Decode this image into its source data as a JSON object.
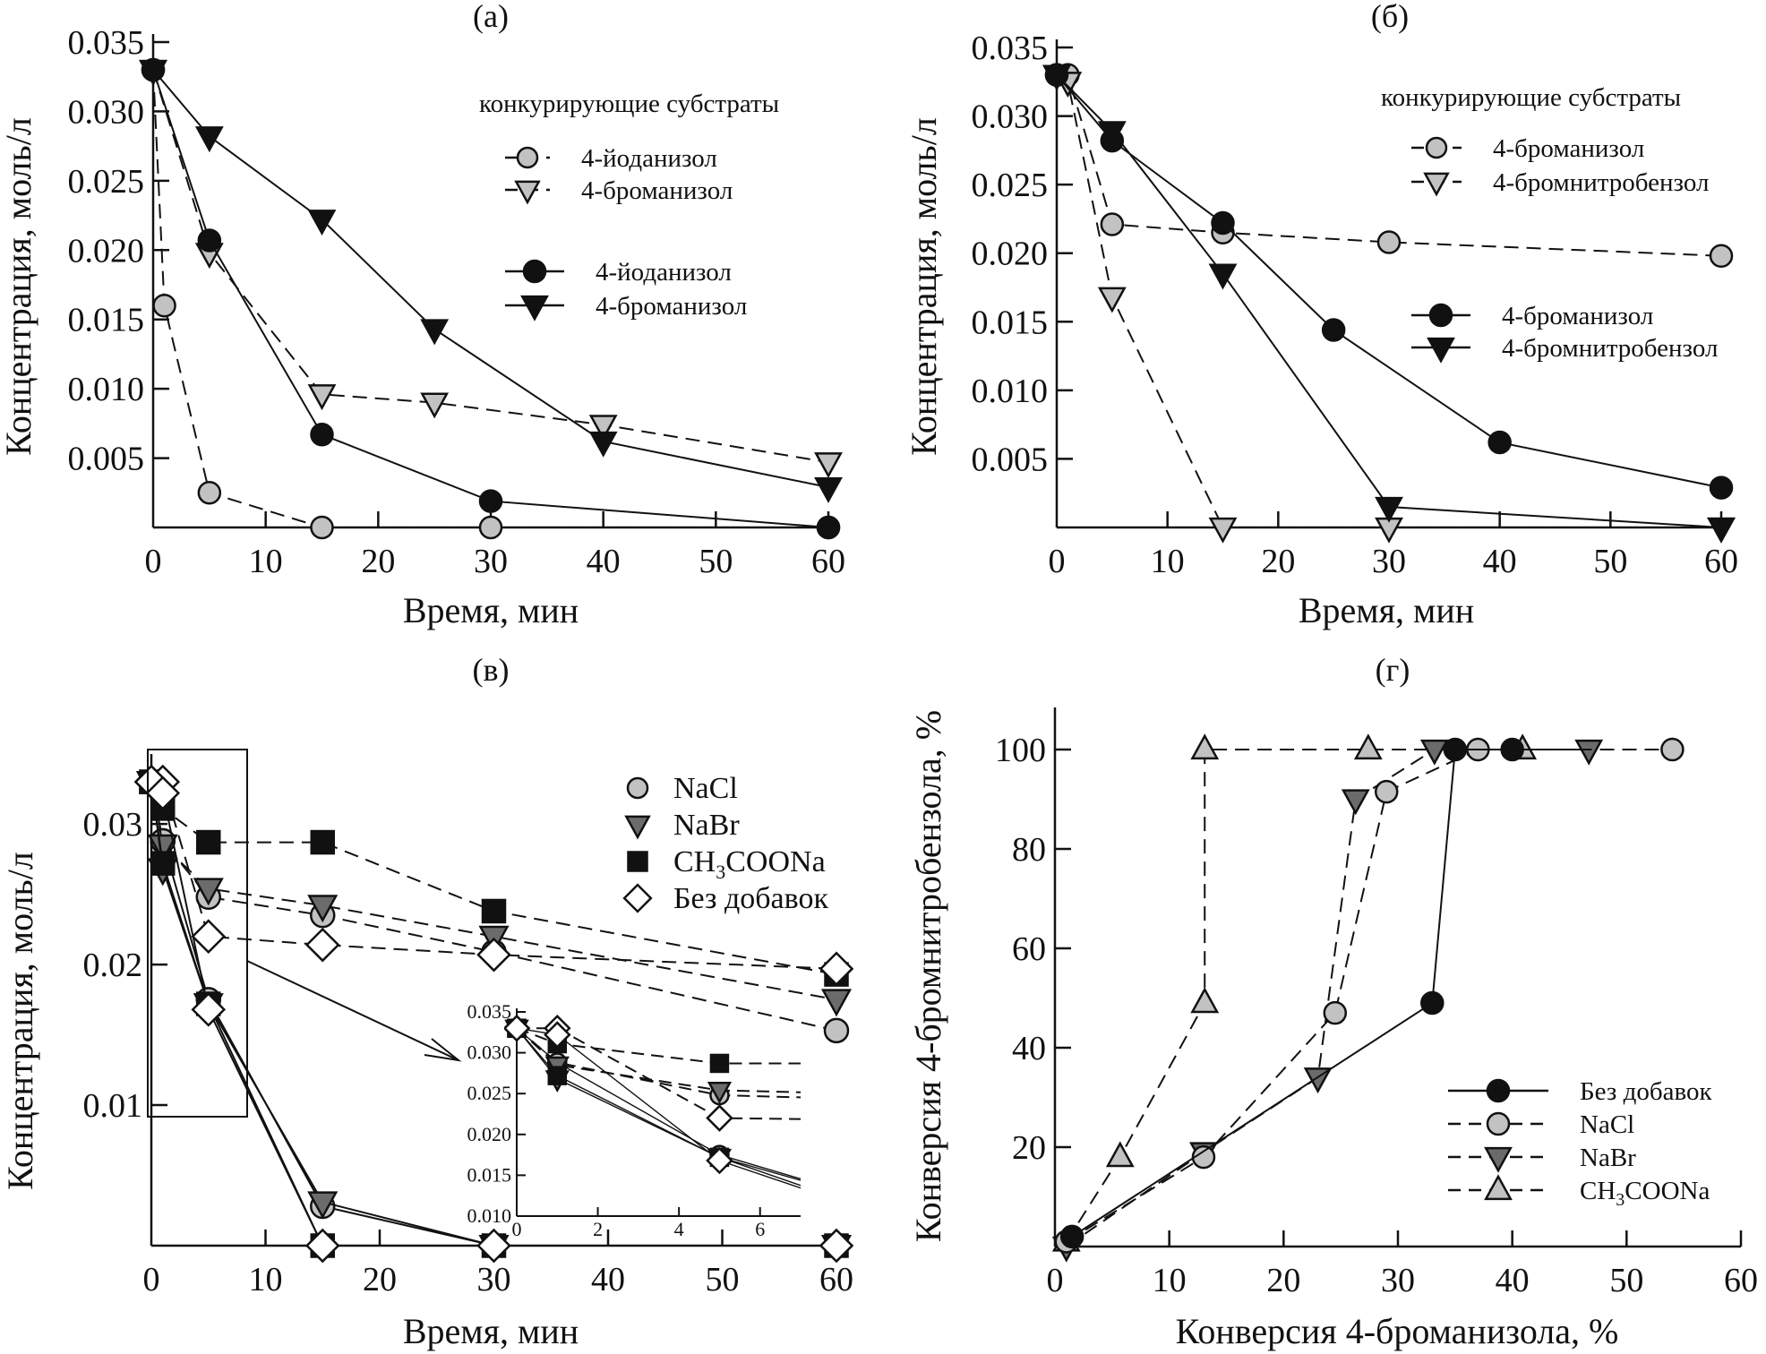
{
  "colors": {
    "ink": "#111111",
    "light_gray": "#c2c2c2",
    "dark_gray": "#6b6b6b",
    "white": "#ffffff"
  },
  "chart_data": [
    {
      "id": "a",
      "type": "line",
      "panel_label": "(a)",
      "xlabel": "Время, мин",
      "ylabel": "Концентрация, моль/л",
      "xlim": [
        0,
        60
      ],
      "ylim": [
        0,
        0.035
      ],
      "xticks": [
        0,
        10,
        20,
        30,
        40,
        50,
        60
      ],
      "xtick_labels": [
        "0",
        "10",
        "20",
        "30",
        "40",
        "50",
        "60"
      ],
      "yticks": [
        0.005,
        0.01,
        0.015,
        0.02,
        0.025,
        0.03,
        0.035
      ],
      "ytick_labels": [
        "0.005",
        "0.010",
        "0.015",
        "0.020",
        "0.025",
        "0.030",
        "0.035"
      ],
      "legend_title": "конкурирующие субстраты",
      "legend_position": "top-right",
      "series": [
        {
          "name": "4-йоданизол",
          "group": "competing",
          "marker": "circle",
          "fill": "light_gray",
          "dash": true,
          "x": [
            0,
            1,
            5,
            15,
            30,
            60
          ],
          "y": [
            0.033,
            0.016,
            0.0025,
            0.0,
            0.0,
            0.0
          ]
        },
        {
          "name": "4-броманизол",
          "group": "competing",
          "marker": "triangle-down",
          "fill": "light_gray",
          "dash": true,
          "x": [
            0,
            5,
            15,
            25,
            40,
            60
          ],
          "y": [
            0.033,
            0.0198,
            0.0096,
            0.009,
            0.0074,
            0.0047
          ]
        },
        {
          "name": "4-йоданизол",
          "group": "single",
          "marker": "circle",
          "fill": "ink",
          "dash": false,
          "x": [
            0,
            5,
            15,
            30,
            60
          ],
          "y": [
            0.033,
            0.0207,
            0.0067,
            0.0019,
            0.0
          ]
        },
        {
          "name": "4-броманизол",
          "group": "single",
          "marker": "triangle-down",
          "fill": "ink",
          "dash": false,
          "x": [
            0,
            5,
            15,
            25,
            40,
            60
          ],
          "y": [
            0.033,
            0.0282,
            0.0222,
            0.0143,
            0.0062,
            0.0029
          ]
        }
      ]
    },
    {
      "id": "b",
      "type": "line",
      "panel_label": "(б)",
      "xlabel": "Время, мин",
      "ylabel": "Концентрация, моль/л",
      "xlim": [
        0,
        60
      ],
      "ylim": [
        0,
        0.035
      ],
      "xticks": [
        0,
        10,
        20,
        30,
        40,
        50,
        60
      ],
      "xtick_labels": [
        "0",
        "10",
        "20",
        "30",
        "40",
        "50",
        "60"
      ],
      "yticks": [
        0.005,
        0.01,
        0.015,
        0.02,
        0.025,
        0.03,
        0.035
      ],
      "ytick_labels": [
        "0.005",
        "0.010",
        "0.015",
        "0.020",
        "0.025",
        "0.030",
        "0.035"
      ],
      "legend_title": "конкурирующие субстраты",
      "legend_position": "top-right",
      "series": [
        {
          "name": "4-броманизол",
          "group": "competing",
          "marker": "circle",
          "fill": "light_gray",
          "dash": true,
          "x": [
            0,
            1,
            5,
            15,
            30,
            60
          ],
          "y": [
            0.033,
            0.033,
            0.0221,
            0.0215,
            0.0208,
            0.0198
          ]
        },
        {
          "name": "4-бромнитробензол",
          "group": "competing",
          "marker": "triangle-down",
          "fill": "light_gray",
          "dash": true,
          "x": [
            0,
            1,
            5,
            15,
            30,
            60
          ],
          "y": [
            0.033,
            0.0325,
            0.0168,
            0.0,
            0.0,
            0.0
          ]
        },
        {
          "name": "4-броманизол",
          "group": "single",
          "marker": "circle",
          "fill": "ink",
          "dash": false,
          "x": [
            0,
            5,
            15,
            25,
            40,
            60
          ],
          "y": [
            0.033,
            0.0282,
            0.0222,
            0.0144,
            0.0062,
            0.0029
          ]
        },
        {
          "name": "4-бромнитробензол",
          "group": "single",
          "marker": "triangle-down",
          "fill": "ink",
          "dash": false,
          "x": [
            0,
            5,
            15,
            30,
            60
          ],
          "y": [
            0.033,
            0.0289,
            0.0185,
            0.0015,
            0.0
          ]
        }
      ]
    },
    {
      "id": "v",
      "type": "line",
      "panel_label": "(в)",
      "xlabel": "Время, мин",
      "ylabel": "Концентрация, моль/л",
      "xlim": [
        0,
        60
      ],
      "ylim": [
        0,
        0.036
      ],
      "xticks": [
        0,
        10,
        20,
        30,
        40,
        50,
        60
      ],
      "xtick_labels": [
        "0",
        "10",
        "20",
        "30",
        "40",
        "50",
        "60"
      ],
      "yticks": [
        0.01,
        0.02,
        0.03
      ],
      "ytick_labels": [
        "0.01",
        "0.02",
        "0.03"
      ],
      "legend_position": "top-right",
      "legend": [
        {
          "name": "NaCl",
          "marker": "circle",
          "fill": "light_gray"
        },
        {
          "name": "NaBr",
          "marker": "triangle-down",
          "fill": "dark_gray"
        },
        {
          "name": "CH3COONa",
          "marker": "square",
          "fill": "ink"
        },
        {
          "name": "Без добавок",
          "marker": "diamond",
          "fill": "white"
        }
      ],
      "series": [
        {
          "name": "NaCl (4-броманизол)",
          "marker": "circle",
          "fill": "light_gray",
          "dash": true,
          "x": [
            0,
            1,
            5,
            15,
            30,
            60
          ],
          "y": [
            0.033,
            0.0288,
            0.0248,
            0.0235,
            0.0209,
            0.0153
          ]
        },
        {
          "name": "NaCl (4-бромнитробензол)",
          "marker": "circle",
          "fill": "light_gray",
          "dash": false,
          "x": [
            0,
            1,
            5,
            15,
            30,
            60
          ],
          "y": [
            0.033,
            0.0288,
            0.0175,
            0.0028,
            0.0,
            0.0
          ]
        },
        {
          "name": "NaBr (4-броманизол)",
          "marker": "triangle-down",
          "fill": "dark_gray",
          "dash": true,
          "x": [
            0,
            1,
            5,
            15,
            30,
            60
          ],
          "y": [
            0.033,
            0.0285,
            0.0254,
            0.0242,
            0.022,
            0.0175
          ]
        },
        {
          "name": "NaBr (4-бромнитробензол)",
          "marker": "triangle-down",
          "fill": "dark_gray",
          "dash": false,
          "x": [
            0,
            1,
            5,
            15,
            30,
            60
          ],
          "y": [
            0.033,
            0.0268,
            0.0172,
            0.0031,
            0.0,
            0.0
          ]
        },
        {
          "name": "CH3COONa (4-броманизол)",
          "marker": "square",
          "fill": "ink",
          "dash": true,
          "x": [
            0,
            1,
            5,
            15,
            30,
            60
          ],
          "y": [
            0.033,
            0.0311,
            0.0287,
            0.0287,
            0.0238,
            0.0193
          ]
        },
        {
          "name": "CH3COONa (4-бромнитробензол)",
          "marker": "square",
          "fill": "ink",
          "dash": false,
          "x": [
            0,
            1,
            5,
            15,
            30,
            60
          ],
          "y": [
            0.033,
            0.0272,
            0.0172,
            0.0,
            0.0,
            0.0
          ]
        },
        {
          "name": "Без добавок (4-броманизол)",
          "marker": "diamond",
          "fill": "white",
          "dash": true,
          "x": [
            0,
            1,
            5,
            15,
            30,
            60
          ],
          "y": [
            0.033,
            0.033,
            0.022,
            0.0214,
            0.0207,
            0.0197
          ]
        },
        {
          "name": "Без добавок (4-бромнитробензол)",
          "marker": "diamond",
          "fill": "white",
          "dash": false,
          "x": [
            0,
            1,
            5,
            15,
            30,
            60
          ],
          "y": [
            0.033,
            0.0322,
            0.0168,
            0.0,
            0.0,
            0.0
          ]
        }
      ],
      "zoom_box": {
        "x": [
          0,
          8.5
        ],
        "y": [
          0.0093,
          0.0355
        ]
      },
      "inset": {
        "xlim": [
          0,
          7
        ],
        "ylim": [
          0.01,
          0.035
        ],
        "xticks": [
          0,
          2,
          4,
          6
        ],
        "xtick_labels": [
          "0",
          "2",
          "4",
          "6"
        ],
        "yticks": [
          0.01,
          0.015,
          0.02,
          0.025,
          0.03,
          0.035
        ],
        "ytick_labels": [
          "0.010",
          "0.015",
          "0.020",
          "0.025",
          "0.030",
          "0.035"
        ]
      }
    },
    {
      "id": "g",
      "type": "line",
      "panel_label": "(г)",
      "xlabel": "Конверсия 4-броманизола, %",
      "ylabel": "Конверсия 4-бромнитробензола, %",
      "xlim": [
        0,
        60
      ],
      "ylim": [
        0,
        100
      ],
      "xticks": [
        0,
        10,
        20,
        30,
        40,
        50,
        60
      ],
      "xtick_labels": [
        "0",
        "10",
        "20",
        "30",
        "40",
        "50",
        "60"
      ],
      "yticks": [
        20,
        40,
        60,
        80,
        100
      ],
      "ytick_labels": [
        "20",
        "40",
        "60",
        "80",
        "100"
      ],
      "legend_position": "bottom-right",
      "series": [
        {
          "name": "Без добавок",
          "marker": "circle",
          "fill": "ink",
          "dash": false,
          "x": [
            1.5,
            33,
            35,
            40
          ],
          "y": [
            2,
            49,
            100,
            100
          ]
        },
        {
          "name": "NaCl",
          "marker": "circle",
          "fill": "light_gray",
          "dash": true,
          "x": [
            1,
            13,
            24.5,
            29,
            37,
            54
          ],
          "y": [
            1,
            18,
            47,
            91.5,
            100,
            100
          ]
        },
        {
          "name": "NaBr",
          "marker": "triangle-down",
          "fill": "dark_gray",
          "dash": true,
          "x": [
            1,
            13,
            23,
            26.3,
            33.2,
            46.7
          ],
          "y": [
            0,
            19,
            34,
            90,
            100,
            100
          ]
        },
        {
          "name": "CH3COONa",
          "marker": "triangle-up",
          "fill": "light_gray",
          "dash": true,
          "x": [
            1,
            5.7,
            13.1,
            13.1,
            27.4,
            40.9
          ],
          "y": [
            1,
            18,
            49,
            100,
            100,
            100
          ]
        }
      ]
    }
  ]
}
